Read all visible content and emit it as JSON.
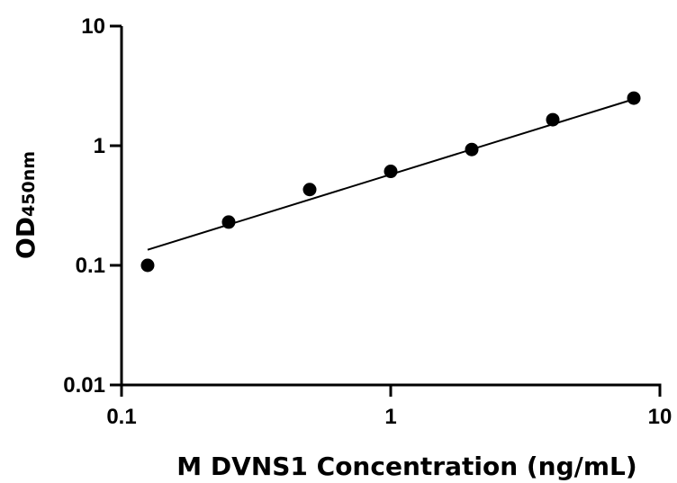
{
  "chart_data": {
    "type": "scatter",
    "xlabel": "M DVNS1 Concentration (ng/mL)",
    "ylabel": "OD",
    "ylabel_subscript": "450nm",
    "xscale": "log",
    "yscale": "log",
    "xlim": [
      0.1,
      10
    ],
    "ylim": [
      0.01,
      10
    ],
    "xticks": [
      0.1,
      1,
      10
    ],
    "xtick_labels": [
      "0.1",
      "1",
      "10"
    ],
    "yticks": [
      0.01,
      0.1,
      1,
      10
    ],
    "ytick_labels": [
      "0.01",
      "0.1",
      "1",
      "10"
    ],
    "grid": false,
    "series": [
      {
        "x": [
          0.125,
          0.25,
          0.5,
          1,
          2,
          4,
          8
        ],
        "y": [
          0.1,
          0.23,
          0.43,
          0.61,
          0.93,
          1.65,
          2.5
        ]
      }
    ],
    "fit_line": {
      "x": [
        0.125,
        8
      ],
      "y": [
        0.135,
        2.45
      ]
    },
    "colors": {
      "marker": "#000000",
      "line": "#000000"
    }
  }
}
